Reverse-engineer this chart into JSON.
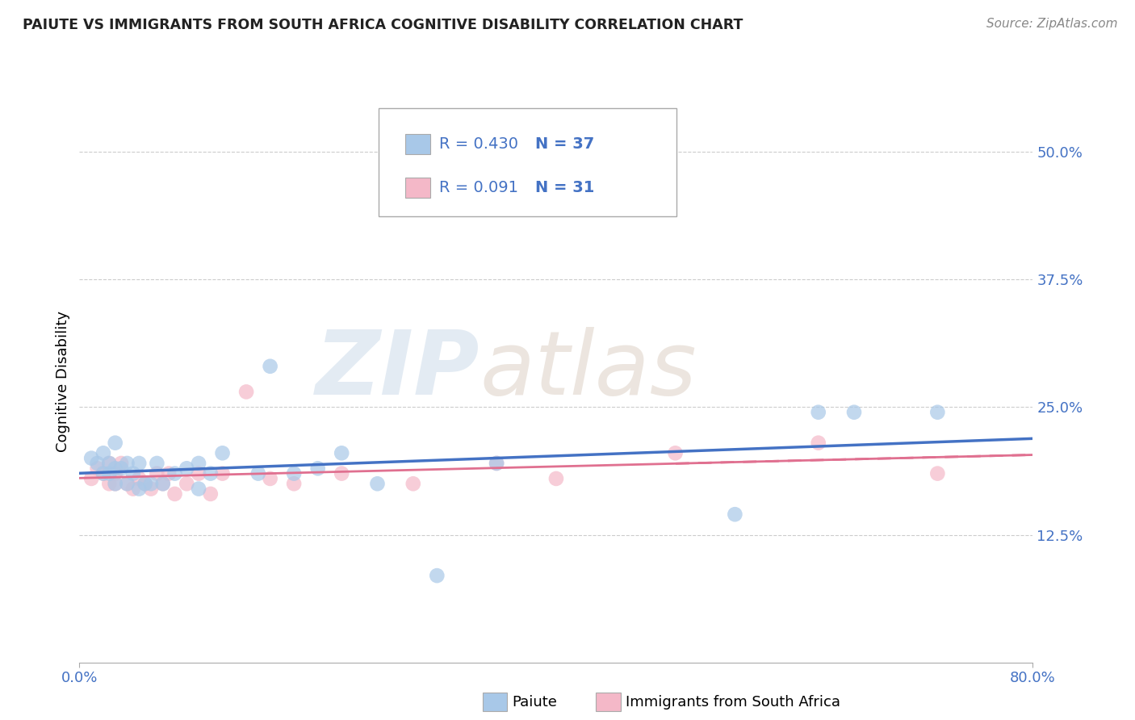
{
  "title": "PAIUTE VS IMMIGRANTS FROM SOUTH AFRICA COGNITIVE DISABILITY CORRELATION CHART",
  "source_text": "Source: ZipAtlas.com",
  "ylabel": "Cognitive Disability",
  "xlim": [
    0.0,
    0.8
  ],
  "ylim": [
    0.0,
    0.55
  ],
  "yticks": [
    0.125,
    0.25,
    0.375,
    0.5
  ],
  "ytick_labels": [
    "12.5%",
    "25.0%",
    "37.5%",
    "50.0%"
  ],
  "xticks": [
    0.0,
    0.8
  ],
  "xtick_labels": [
    "0.0%",
    "80.0%"
  ],
  "watermark_zip": "ZIP",
  "watermark_atlas": "atlas",
  "blue_color": "#a8c8e8",
  "pink_color": "#f4b8c8",
  "blue_line_color": "#4472c4",
  "pink_line_color": "#e07090",
  "legend_text_color": "#4472c4",
  "paiute_x": [
    0.01,
    0.015,
    0.02,
    0.02,
    0.025,
    0.025,
    0.03,
    0.03,
    0.03,
    0.035,
    0.04,
    0.04,
    0.045,
    0.05,
    0.05,
    0.055,
    0.06,
    0.065,
    0.07,
    0.08,
    0.09,
    0.1,
    0.1,
    0.11,
    0.12,
    0.15,
    0.16,
    0.18,
    0.2,
    0.22,
    0.25,
    0.3,
    0.35,
    0.55,
    0.62,
    0.65,
    0.72
  ],
  "paiute_y": [
    0.2,
    0.195,
    0.185,
    0.205,
    0.185,
    0.195,
    0.215,
    0.19,
    0.175,
    0.19,
    0.195,
    0.175,
    0.185,
    0.17,
    0.195,
    0.175,
    0.175,
    0.195,
    0.175,
    0.185,
    0.19,
    0.195,
    0.17,
    0.185,
    0.205,
    0.185,
    0.29,
    0.185,
    0.19,
    0.205,
    0.175,
    0.085,
    0.195,
    0.145,
    0.245,
    0.245,
    0.245
  ],
  "sa_x": [
    0.01,
    0.015,
    0.02,
    0.025,
    0.025,
    0.03,
    0.03,
    0.035,
    0.04,
    0.045,
    0.05,
    0.055,
    0.06,
    0.065,
    0.07,
    0.075,
    0.08,
    0.09,
    0.1,
    0.11,
    0.12,
    0.14,
    0.16,
    0.18,
    0.22,
    0.28,
    0.35,
    0.4,
    0.5,
    0.62,
    0.72
  ],
  "sa_y": [
    0.18,
    0.19,
    0.185,
    0.195,
    0.175,
    0.175,
    0.185,
    0.195,
    0.175,
    0.17,
    0.18,
    0.175,
    0.17,
    0.185,
    0.175,
    0.185,
    0.165,
    0.175,
    0.185,
    0.165,
    0.185,
    0.265,
    0.18,
    0.175,
    0.185,
    0.175,
    0.195,
    0.18,
    0.205,
    0.215,
    0.185
  ]
}
